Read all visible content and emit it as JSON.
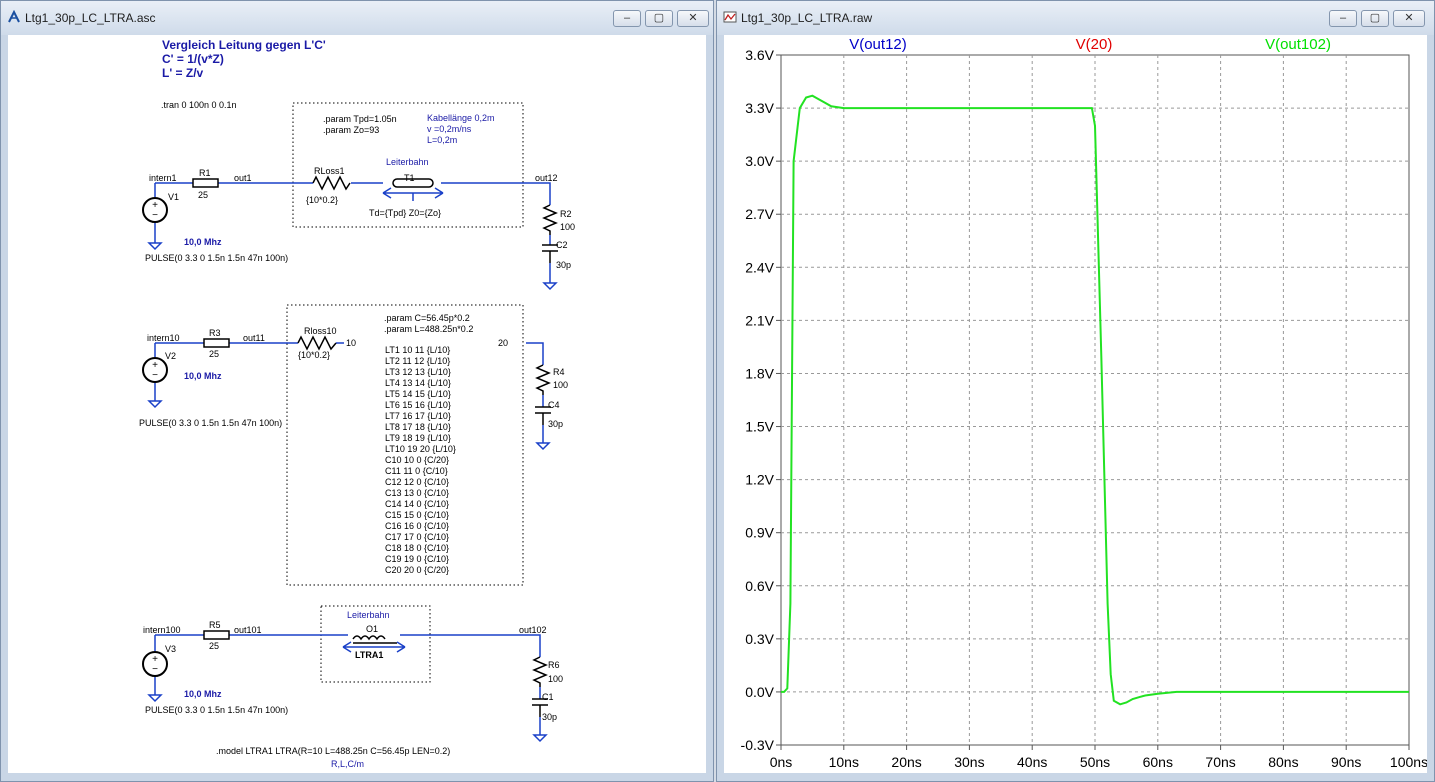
{
  "schematic_window": {
    "title": "Ltg1_30p_LC_LTRA.asc",
    "minimize": "–",
    "restore": "▢",
    "close": "✕",
    "texts": {
      "heading1": "Vergleich Leitung gegen L'C'",
      "heading2": "C' = 1/(v*Z)",
      "heading3": "L' = Z/v",
      "tran": ".tran 0 100n 0 0.1n",
      "param1a": ".param Tpd=1.05n",
      "param1b": ".param Zo=93",
      "kabel1": "Kabellänge 0,2m",
      "kabel2": "v =0,2m/ns",
      "kabel3": "L=0,2m",
      "leiterbahn1": "Leiterbahn",
      "intern1": "intern1",
      "r1": "R1",
      "r1v": "25",
      "out1": "out1",
      "rloss1": "RLoss1",
      "rloss1v": "{10*0.2}",
      "t1": "T1",
      "t1v": "Td={Tpd} Z0={Zo}",
      "out12": "out12",
      "r2": "R2",
      "r2v": "100",
      "c2": "C2",
      "c2v": "30p",
      "v1": "V1",
      "freq1": "10,0 Mhz",
      "pulse1": "PULSE(0 3.3 0 1.5n 1.5n 47n 100n)",
      "param2a": ".param C=56.45p*0.2",
      "param2b": ".param L=488.25n*0.2",
      "intern10": "intern10",
      "r3": "R3",
      "r3v": "25",
      "out11": "out11",
      "rloss10": "Rloss10",
      "rloss10v": "{10*0.2}",
      "n10": "10",
      "n20": "20",
      "r4": "R4",
      "r4v": "100",
      "c4": "C4",
      "c4v": "30p",
      "v2": "V2",
      "freq2": "10,0 Mhz",
      "pulse2": "PULSE(0 3.3 0 1.5n 1.5n 47n 100n)",
      "netlist": [
        "LT1 10 11 {L/10}",
        "LT2 11 12  {L/10}",
        "LT3 12 13  {L/10}",
        "LT4 13 14  {L/10}",
        "LT5 14 15  {L/10}",
        "LT6 15 16  {L/10}",
        "LT7 16 17  {L/10}",
        "LT8 17 18  {L/10}",
        "LT9 18 19  {L/10}",
        "LT10 19 20  {L/10}",
        "C10 10 0 {C/20}",
        "C11 11 0 {C/10}",
        "C12 12 0 {C/10}",
        "C13 13 0 {C/10}",
        "C14 14 0 {C/10}",
        "C15 15 0 {C/10}",
        "C16 16 0 {C/10}",
        "C17 17 0 {C/10}",
        "C18 18 0 {C/10}",
        "C19 19 0 {C/10}",
        "C20 20 0 {C/20}"
      ],
      "leiterbahn2": "Leiterbahn",
      "intern100": "intern100",
      "r5": "R5",
      "r5v": "25",
      "out101": "out101",
      "o1": "O1",
      "ltra1": "LTRA1",
      "out102": "out102",
      "r6": "R6",
      "r6v": "100",
      "c1": "C1",
      "c1v": "30p",
      "v3": "V3",
      "freq3": "10,0 Mhz",
      "pulse3": "PULSE(0 3.3 0 1.5n 1.5n 47n 100n)",
      "model": ".model LTRA1 LTRA(R=10 L=488.25n C=56.45p LEN=0.2)",
      "rlc": "R,L,C/m"
    }
  },
  "plot_window": {
    "title": "Ltg1_30p_LC_LTRA.raw",
    "minimize": "–",
    "restore": "▢",
    "close": "✕",
    "chart_data": {
      "type": "line",
      "xlabel": "",
      "ylabel": "",
      "x_ticks": [
        "0ns",
        "10ns",
        "20ns",
        "30ns",
        "40ns",
        "50ns",
        "60ns",
        "70ns",
        "80ns",
        "90ns",
        "100ns"
      ],
      "y_ticks": [
        "-0.3V",
        "0.0V",
        "0.3V",
        "0.6V",
        "0.9V",
        "1.2V",
        "1.5V",
        "1.8V",
        "2.1V",
        "2.4V",
        "2.7V",
        "3.0V",
        "3.3V",
        "3.6V"
      ],
      "xlim": [
        0,
        100
      ],
      "ylim": [
        -0.3,
        3.6
      ],
      "grid": true,
      "legend": [
        {
          "name": "V(out12)",
          "color": "#0000c8"
        },
        {
          "name": "V(20)",
          "color": "#e00000"
        },
        {
          "name": "V(out102)",
          "color": "#00e000"
        }
      ],
      "series": [
        {
          "name": "V(out102)",
          "color": "#22e222",
          "x": [
            0,
            0.5,
            1,
            1.5,
            2,
            3,
            4,
            5,
            6,
            7,
            8,
            10,
            12,
            15,
            20,
            30,
            40,
            48,
            49.5,
            50,
            51,
            52,
            52.5,
            53,
            54,
            55,
            56,
            57,
            58,
            60,
            63,
            66,
            70,
            80,
            90,
            100
          ],
          "y": [
            0.0,
            0.0,
            0.02,
            0.5,
            3.0,
            3.3,
            3.36,
            3.37,
            3.35,
            3.33,
            3.31,
            3.3,
            3.3,
            3.3,
            3.3,
            3.3,
            3.3,
            3.3,
            3.3,
            3.2,
            1.9,
            0.5,
            0.1,
            -0.05,
            -0.07,
            -0.06,
            -0.04,
            -0.03,
            -0.02,
            -0.01,
            0.0,
            0.0,
            0.0,
            0.0,
            0.0,
            0.0
          ]
        }
      ]
    }
  }
}
